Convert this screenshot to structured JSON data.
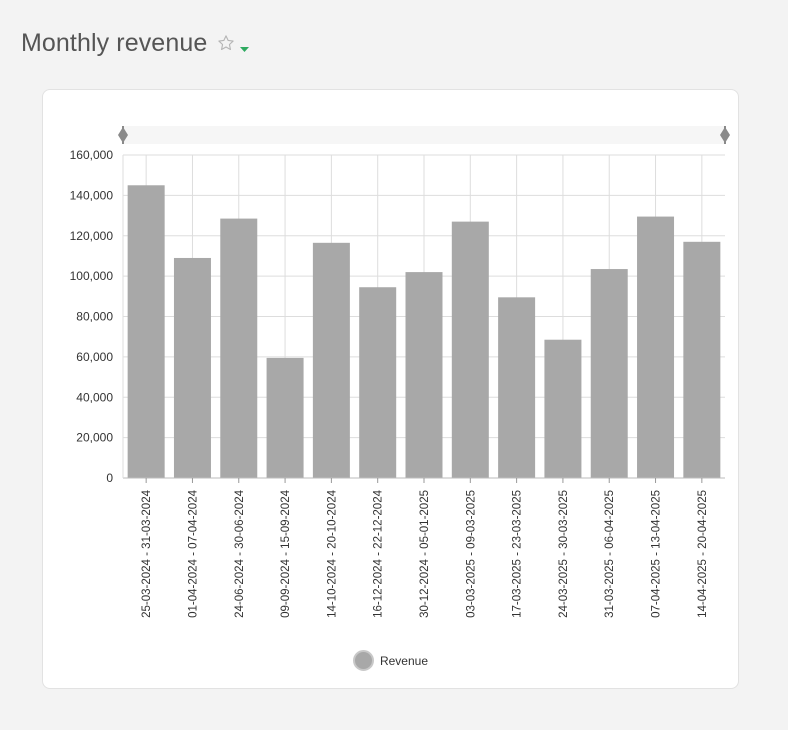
{
  "page": {
    "title": "Monthly revenue"
  },
  "icons": {
    "favorite": "star-outline-icon",
    "menu": "caret-down-icon"
  },
  "colors": {
    "bar": "#a8a8a8",
    "accent": "#2eaa60",
    "grid": "#dddddd",
    "slider": "#f6f6f6",
    "handle": "#8a8a8a"
  },
  "chart_data": {
    "type": "bar",
    "categories": [
      "25-03-2024 - 31-03-2024",
      "01-04-2024 - 07-04-2024",
      "24-06-2024 - 30-06-2024",
      "09-09-2024 - 15-09-2024",
      "14-10-2024 - 20-10-2024",
      "16-12-2024 - 22-12-2024",
      "30-12-2024 - 05-01-2025",
      "03-03-2025 - 09-03-2025",
      "17-03-2025 - 23-03-2025",
      "24-03-2025 - 30-03-2025",
      "31-03-2025 - 06-04-2025",
      "07-04-2025 - 13-04-2025",
      "14-04-2025 - 20-04-2025"
    ],
    "series": [
      {
        "name": "Revenue",
        "values": [
          145000,
          109000,
          128500,
          59500,
          116500,
          94500,
          102000,
          127000,
          89500,
          68500,
          103500,
          129500,
          117000
        ]
      }
    ],
    "ylim": [
      0,
      160000
    ],
    "yticks": [
      0,
      20000,
      40000,
      60000,
      80000,
      100000,
      120000,
      140000,
      160000
    ],
    "ytick_labels": [
      "0",
      "20,000",
      "40,000",
      "60,000",
      "80,000",
      "100,000",
      "120,000",
      "140,000",
      "160,000"
    ],
    "grid": true,
    "legend": "bottom-center",
    "range_slider": true
  }
}
